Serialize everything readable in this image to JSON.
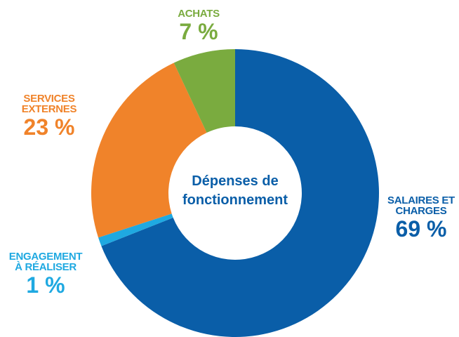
{
  "chart_data": {
    "type": "pie",
    "donut": true,
    "center_label": "Dépenses de fonctionnement",
    "categories": [
      "SALAIRES ET CHARGES",
      "ENGAGEMENT À RÉALISER",
      "SERVICES EXTERNES",
      "ACHATS"
    ],
    "values": [
      69,
      1,
      23,
      7
    ],
    "value_labels": [
      "69 %",
      "1 %",
      "23 %",
      "7 %"
    ],
    "colors": [
      "#0a5ea8",
      "#1fa9e1",
      "#f0832a",
      "#7aab3f"
    ]
  }
}
